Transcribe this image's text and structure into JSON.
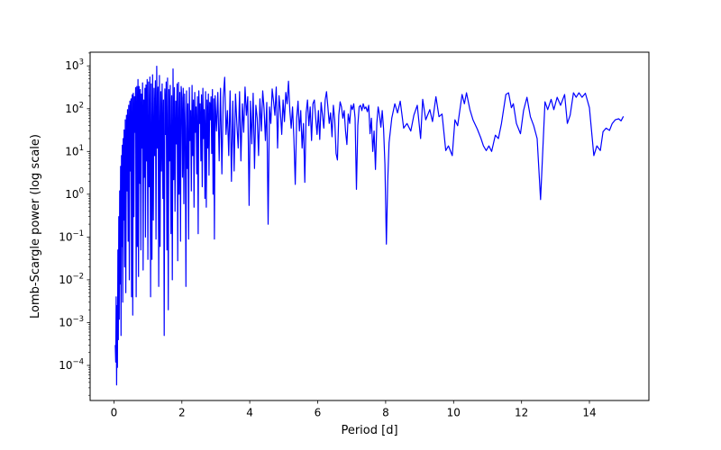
{
  "chart_data": {
    "type": "line",
    "title": "",
    "xlabel": "Period [d]",
    "ylabel": "Lomb-Scargle power (log scale)",
    "line_color": "#0000ff",
    "background_color": "#ffffff",
    "grid": false,
    "legend": null,
    "x_ticks": [
      0,
      2,
      4,
      6,
      8,
      10,
      12,
      14
    ],
    "y_scale": "log",
    "y_tick_exponents": [
      3,
      2,
      1,
      0,
      -1,
      -2,
      -3,
      -4
    ],
    "xlim": [
      -0.7,
      15.75
    ],
    "ylim_log10": [
      -4.82,
      3.32
    ],
    "points": [
      [
        0.04,
        0.0003
      ],
      [
        0.053,
        0.00012
      ],
      [
        0.066,
        0.004
      ],
      [
        0.079,
        3.5e-05
      ],
      [
        0.092,
        0.0025
      ],
      [
        0.105,
        9e-05
      ],
      [
        0.118,
        0.05
      ],
      [
        0.131,
        0.0004
      ],
      [
        0.144,
        0.3
      ],
      [
        0.157,
        0.0012
      ],
      [
        0.17,
        1.2
      ],
      [
        0.183,
        0.008
      ],
      [
        0.196,
        4.5
      ],
      [
        0.209,
        0.0005
      ],
      [
        0.222,
        8
      ],
      [
        0.235,
        0.06
      ],
      [
        0.248,
        14
      ],
      [
        0.261,
        0.003
      ],
      [
        0.274,
        20
      ],
      [
        0.287,
        0.25
      ],
      [
        0.3,
        32
      ],
      [
        0.317,
        0.02
      ],
      [
        0.334,
        55
      ],
      [
        0.351,
        0.005
      ],
      [
        0.368,
        70
      ],
      [
        0.385,
        1.2
      ],
      [
        0.402,
        95
      ],
      [
        0.419,
        0.08
      ],
      [
        0.436,
        120
      ],
      [
        0.453,
        0.01
      ],
      [
        0.47,
        150
      ],
      [
        0.487,
        3.5
      ],
      [
        0.504,
        170
      ],
      [
        0.521,
        0.004
      ],
      [
        0.538,
        210
      ],
      [
        0.555,
        0.0015
      ],
      [
        0.572,
        230
      ],
      [
        0.589,
        0.3
      ],
      [
        0.606,
        190
      ],
      [
        0.623,
        28
      ],
      [
        0.64,
        310
      ],
      [
        0.657,
        0.004
      ],
      [
        0.674,
        330
      ],
      [
        0.691,
        0.06
      ],
      [
        0.708,
        480
      ],
      [
        0.725,
        0.012
      ],
      [
        0.742,
        330
      ],
      [
        0.759,
        1.8
      ],
      [
        0.776,
        280
      ],
      [
        0.793,
        0.05
      ],
      [
        0.81,
        220
      ],
      [
        0.827,
        12
      ],
      [
        0.844,
        400
      ],
      [
        0.861,
        0.017
      ],
      [
        0.878,
        160
      ],
      [
        0.895,
        2.5
      ],
      [
        0.912,
        300
      ],
      [
        0.929,
        0.1
      ],
      [
        0.946,
        360
      ],
      [
        0.963,
        6
      ],
      [
        0.98,
        480
      ],
      [
        1.0,
        0.03
      ],
      [
        1.02,
        420
      ],
      [
        1.04,
        1.5
      ],
      [
        1.06,
        550
      ],
      [
        1.08,
        0.004
      ],
      [
        1.1,
        380
      ],
      [
        1.12,
        0.03
      ],
      [
        1.14,
        620
      ],
      [
        1.16,
        0.25
      ],
      [
        1.18,
        300
      ],
      [
        1.2,
        8
      ],
      [
        1.22,
        450
      ],
      [
        1.24,
        0.09
      ],
      [
        1.26,
        980
      ],
      [
        1.28,
        12
      ],
      [
        1.3,
        320
      ],
      [
        1.32,
        0.007
      ],
      [
        1.34,
        600
      ],
      [
        1.36,
        0.06
      ],
      [
        1.38,
        250
      ],
      [
        1.4,
        3.5
      ],
      [
        1.42,
        380
      ],
      [
        1.44,
        0.8
      ],
      [
        1.46,
        160
      ],
      [
        1.48,
        0.0005
      ],
      [
        1.5,
        290
      ],
      [
        1.52,
        25
      ],
      [
        1.54,
        420
      ],
      [
        1.56,
        0.05
      ],
      [
        1.58,
        520
      ],
      [
        1.6,
        0.002
      ],
      [
        1.62,
        280
      ],
      [
        1.64,
        6
      ],
      [
        1.66,
        350
      ],
      [
        1.68,
        0.12
      ],
      [
        1.7,
        200
      ],
      [
        1.72,
        0.01
      ],
      [
        1.74,
        850
      ],
      [
        1.76,
        2.2
      ],
      [
        1.78,
        310
      ],
      [
        1.8,
        0.4
      ],
      [
        1.82,
        150
      ],
      [
        1.84,
        15
      ],
      [
        1.86,
        380
      ],
      [
        1.88,
        0.028
      ],
      [
        1.9,
        410
      ],
      [
        1.92,
        1
      ],
      [
        1.94,
        240
      ],
      [
        1.96,
        0.08
      ],
      [
        1.98,
        330
      ],
      [
        2.0,
        180
      ],
      [
        2.02,
        2.5
      ],
      [
        2.04,
        300
      ],
      [
        2.06,
        0.6
      ],
      [
        2.08,
        220
      ],
      [
        2.1,
        35
      ],
      [
        2.12,
        0.007
      ],
      [
        2.14,
        260
      ],
      [
        2.16,
        4
      ],
      [
        2.18,
        130
      ],
      [
        2.2,
        0.09
      ],
      [
        2.22,
        310
      ],
      [
        2.24,
        18
      ],
      [
        2.26,
        90
      ],
      [
        2.28,
        1.2
      ],
      [
        2.3,
        350
      ],
      [
        2.32,
        8
      ],
      [
        2.34,
        160
      ],
      [
        2.36,
        0.5
      ],
      [
        2.38,
        240
      ],
      [
        2.4,
        28
      ],
      [
        2.42,
        110
      ],
      [
        2.44,
        3
      ],
      [
        2.46,
        190
      ],
      [
        2.48,
        0.12
      ],
      [
        2.5,
        260
      ],
      [
        2.52,
        45
      ],
      [
        2.54,
        130
      ],
      [
        2.56,
        6
      ],
      [
        2.58,
        210
      ],
      [
        2.6,
        1.5
      ],
      [
        2.62,
        300
      ],
      [
        2.64,
        20
      ],
      [
        2.66,
        95
      ],
      [
        2.68,
        0.8
      ],
      [
        2.7,
        250
      ],
      [
        2.72,
        0.5
      ],
      [
        2.74,
        160
      ],
      [
        2.76,
        12
      ],
      [
        2.78,
        220
      ],
      [
        2.8,
        2.8
      ],
      [
        2.82,
        140
      ],
      [
        2.84,
        55
      ],
      [
        2.86,
        190
      ],
      [
        2.88,
        9
      ],
      [
        2.9,
        280
      ],
      [
        2.92,
        1
      ],
      [
        2.94,
        170
      ],
      [
        2.96,
        0.09
      ],
      [
        2.98,
        200
      ],
      [
        3.02,
        30
      ],
      [
        3.06,
        240
      ],
      [
        3.1,
        6
      ],
      [
        3.14,
        300
      ],
      [
        3.18,
        3
      ],
      [
        3.22,
        180
      ],
      [
        3.26,
        540
      ],
      [
        3.3,
        25
      ],
      [
        3.34,
        90
      ],
      [
        3.38,
        8
      ],
      [
        3.42,
        260
      ],
      [
        3.46,
        2
      ],
      [
        3.5,
        150
      ],
      [
        3.54,
        3.5
      ],
      [
        3.58,
        220
      ],
      [
        3.62,
        45
      ],
      [
        3.66,
        12
      ],
      [
        3.7,
        250
      ],
      [
        3.74,
        6
      ],
      [
        3.78,
        130
      ],
      [
        3.82,
        28
      ],
      [
        3.86,
        320
      ],
      [
        3.9,
        70
      ],
      [
        3.94,
        190
      ],
      [
        3.98,
        0.55
      ],
      [
        4.02,
        150
      ],
      [
        4.06,
        15
      ],
      [
        4.1,
        230
      ],
      [
        4.14,
        4
      ],
      [
        4.18,
        120
      ],
      [
        4.22,
        60
      ],
      [
        4.26,
        8
      ],
      [
        4.3,
        170
      ],
      [
        4.34,
        30
      ],
      [
        4.38,
        260
      ],
      [
        4.42,
        100
      ],
      [
        4.46,
        18
      ],
      [
        4.5,
        140
      ],
      [
        4.54,
        0.2
      ],
      [
        4.58,
        110
      ],
      [
        4.62,
        45
      ],
      [
        4.66,
        290
      ],
      [
        4.7,
        150
      ],
      [
        4.74,
        70
      ],
      [
        4.78,
        320
      ],
      [
        4.82,
        12
      ],
      [
        4.86,
        200
      ],
      [
        4.9,
        85
      ],
      [
        4.94,
        25
      ],
      [
        4.98,
        160
      ],
      [
        5.02,
        50
      ],
      [
        5.06,
        240
      ],
      [
        5.1,
        130
      ],
      [
        5.14,
        440
      ],
      [
        5.18,
        90
      ],
      [
        5.22,
        35
      ],
      [
        5.26,
        110
      ],
      [
        5.3,
        20
      ],
      [
        5.34,
        1.7
      ],
      [
        5.38,
        60
      ],
      [
        5.42,
        150
      ],
      [
        5.46,
        30
      ],
      [
        5.5,
        90
      ],
      [
        5.54,
        12
      ],
      [
        5.58,
        45
      ],
      [
        5.62,
        1.9
      ],
      [
        5.66,
        80
      ],
      [
        5.7,
        160
      ],
      [
        5.74,
        40
      ],
      [
        5.78,
        110
      ],
      [
        5.82,
        18
      ],
      [
        5.86,
        130
      ],
      [
        5.9,
        160
      ],
      [
        5.94,
        60
      ],
      [
        5.98,
        25
      ],
      [
        6.02,
        90
      ],
      [
        6.06,
        19
      ],
      [
        6.1,
        140
      ],
      [
        6.14,
        70
      ],
      [
        6.18,
        35
      ],
      [
        6.22,
        160
      ],
      [
        6.26,
        250
      ],
      [
        6.3,
        110
      ],
      [
        6.34,
        45
      ],
      [
        6.38,
        80
      ],
      [
        6.42,
        22
      ],
      [
        6.46,
        120
      ],
      [
        6.5,
        55
      ],
      [
        6.54,
        9
      ],
      [
        6.58,
        6.3
      ],
      [
        6.62,
        70
      ],
      [
        6.66,
        145
      ],
      [
        6.7,
        110
      ],
      [
        6.74,
        60
      ],
      [
        6.78,
        90
      ],
      [
        6.82,
        30
      ],
      [
        6.86,
        14.5
      ],
      [
        6.9,
        75
      ],
      [
        6.94,
        45
      ],
      [
        6.98,
        120
      ],
      [
        7.02,
        95
      ],
      [
        7.06,
        130
      ],
      [
        7.1,
        60
      ],
      [
        7.14,
        1.3
      ],
      [
        7.18,
        40
      ],
      [
        7.22,
        110
      ],
      [
        7.26,
        120
      ],
      [
        7.3,
        90
      ],
      [
        7.34,
        130
      ],
      [
        7.38,
        100
      ],
      [
        7.42,
        110
      ],
      [
        7.46,
        85
      ],
      [
        7.5,
        120
      ],
      [
        7.54,
        26
      ],
      [
        7.58,
        60
      ],
      [
        7.62,
        10
      ],
      [
        7.66,
        30
      ],
      [
        7.7,
        3.8
      ],
      [
        7.74,
        45
      ],
      [
        7.78,
        110
      ],
      [
        7.82,
        70
      ],
      [
        7.86,
        37
      ],
      [
        7.9,
        90
      ],
      [
        7.94,
        34
      ],
      [
        7.98,
        5
      ],
      [
        8.02,
        0.068
      ],
      [
        8.06,
        2
      ],
      [
        8.1,
        16
      ],
      [
        8.18,
        60
      ],
      [
        8.27,
        130
      ],
      [
        8.35,
        80
      ],
      [
        8.43,
        150
      ],
      [
        8.53,
        35
      ],
      [
        8.63,
        45
      ],
      [
        8.74,
        30
      ],
      [
        8.83,
        70
      ],
      [
        8.93,
        120
      ],
      [
        9.03,
        20
      ],
      [
        9.09,
        165
      ],
      [
        9.18,
        55
      ],
      [
        9.3,
        95
      ],
      [
        9.38,
        50
      ],
      [
        9.48,
        190
      ],
      [
        9.57,
        65
      ],
      [
        9.66,
        75
      ],
      [
        9.77,
        10.5
      ],
      [
        9.85,
        13.5
      ],
      [
        9.96,
        8
      ],
      [
        10.04,
        55
      ],
      [
        10.12,
        40
      ],
      [
        10.25,
        215
      ],
      [
        10.32,
        130
      ],
      [
        10.38,
        235
      ],
      [
        10.48,
        95
      ],
      [
        10.57,
        55
      ],
      [
        10.7,
        33
      ],
      [
        10.8,
        21
      ],
      [
        10.88,
        13.5
      ],
      [
        10.96,
        10.5
      ],
      [
        11.04,
        13.5
      ],
      [
        11.12,
        10
      ],
      [
        11.23,
        24
      ],
      [
        11.32,
        20
      ],
      [
        11.41,
        45
      ],
      [
        11.54,
        215
      ],
      [
        11.62,
        235
      ],
      [
        11.7,
        105
      ],
      [
        11.76,
        130
      ],
      [
        11.85,
        45
      ],
      [
        11.97,
        26
      ],
      [
        12.06,
        90
      ],
      [
        12.16,
        185
      ],
      [
        12.26,
        65
      ],
      [
        12.36,
        40
      ],
      [
        12.46,
        20
      ],
      [
        12.56,
        0.75
      ],
      [
        12.69,
        145
      ],
      [
        12.77,
        95
      ],
      [
        12.87,
        165
      ],
      [
        12.95,
        95
      ],
      [
        13.05,
        185
      ],
      [
        13.15,
        120
      ],
      [
        13.27,
        215
      ],
      [
        13.35,
        45
      ],
      [
        13.43,
        70
      ],
      [
        13.53,
        235
      ],
      [
        13.61,
        185
      ],
      [
        13.69,
        235
      ],
      [
        13.78,
        185
      ],
      [
        13.88,
        230
      ],
      [
        14.0,
        105
      ],
      [
        14.13,
        8
      ],
      [
        14.22,
        13.5
      ],
      [
        14.32,
        10.5
      ],
      [
        14.4,
        29
      ],
      [
        14.49,
        35
      ],
      [
        14.59,
        31
      ],
      [
        14.67,
        45
      ],
      [
        14.76,
        55
      ],
      [
        14.86,
        58
      ],
      [
        14.93,
        52
      ],
      [
        15.0,
        66
      ]
    ]
  }
}
